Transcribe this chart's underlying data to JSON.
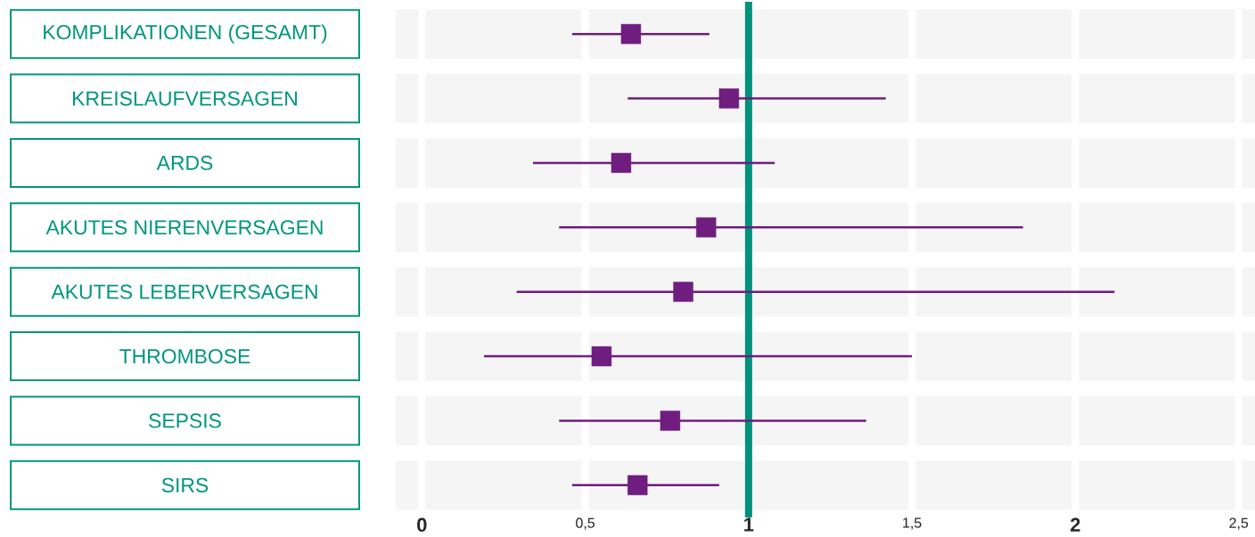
{
  "chart_data": {
    "type": "scatter",
    "orientation": "horizontal",
    "categories": [
      "KOMPLIKATIONEN (GESAMT)",
      "KREISLAUFVERSAGEN",
      "ARDS",
      "AKUTES NIERENVERSAGEN",
      "AKUTES LEBERVERSAGEN",
      "THROMBOSE",
      "SEPSIS",
      "SIRS"
    ],
    "values": [
      0.64,
      0.94,
      0.61,
      0.87,
      0.8,
      0.55,
      0.76,
      0.66
    ],
    "errors": [
      [
        0.46,
        0.88
      ],
      [
        0.63,
        1.42
      ],
      [
        0.34,
        1.08
      ],
      [
        0.42,
        1.84
      ],
      [
        0.29,
        2.12
      ],
      [
        0.19,
        1.5
      ],
      [
        0.42,
        1.36
      ],
      [
        0.46,
        0.91
      ]
    ],
    "color": "#6f1d7f",
    "marker": "square",
    "xlim": [
      -0.08,
      2.55
    ],
    "xticks": [
      0,
      {
        "value": 0.5,
        "label": "0,5"
      },
      1,
      {
        "value": 1.5,
        "label": "1,5"
      },
      2,
      {
        "value": 2.5,
        "label": "2,5"
      }
    ],
    "grid": true,
    "ref_lines": [
      {
        "axis": "x",
        "value": 1,
        "color": "#00917a"
      }
    ]
  }
}
